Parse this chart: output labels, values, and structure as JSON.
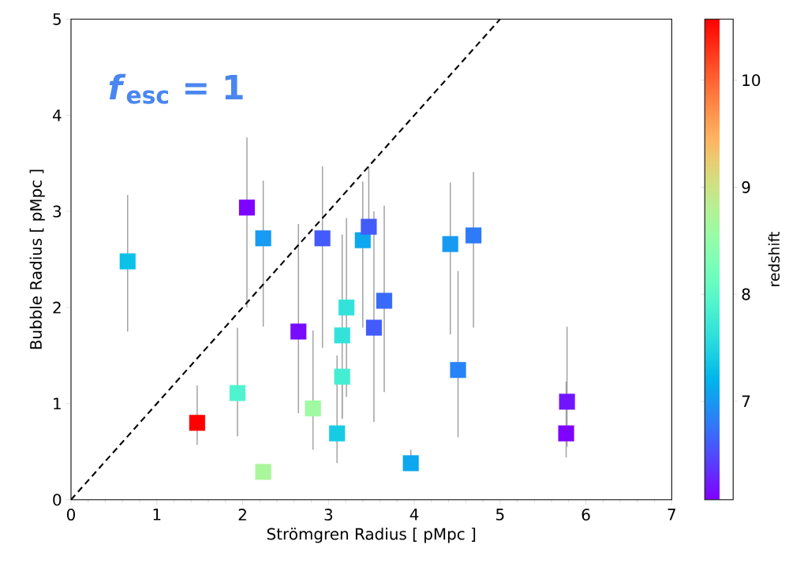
{
  "chart_data": {
    "type": "scatter",
    "xlabel": "Strömgren Radius [ pMpc ]",
    "ylabel": "Bubble Radius [ pMpc ]",
    "clabel": "redshift",
    "annotations": [
      "*f*$_{esc}$ = 1"
    ],
    "xlim": [
      0,
      7
    ],
    "xticks": [
      0,
      1,
      2,
      3,
      4,
      5,
      6,
      7
    ],
    "ylim": [
      0,
      5
    ],
    "yticks": [
      0,
      1,
      2,
      3,
      4,
      5
    ],
    "clim": [
      6.08,
      10.57
    ],
    "cticks": [
      7,
      8,
      9,
      10
    ],
    "series": [
      {
        "marker": "square",
        "colors": [
          "#0bc1e8",
          "#7d04ff",
          "#179bf2",
          "#ff0000",
          "#4ff4cf",
          "#aaf69a",
          "#780cff",
          "#9ffaa2",
          "#445bfb",
          "#16cbe4",
          "#44eed3",
          "#33e3da",
          "#33e3da",
          "#0ca7ef",
          "#445bfb",
          "#445bfb",
          "#396bf9",
          "#0ca7ef",
          "#179bf2",
          "#2e7bf7",
          "#2883f6",
          "#7215ff",
          "#7d04ff"
        ],
        "x": [
          0.66,
          2.05,
          2.24,
          1.47,
          1.94,
          2.24,
          2.65,
          2.82,
          2.93,
          3.1,
          3.16,
          3.16,
          3.21,
          3.4,
          3.47,
          3.53,
          3.65,
          3.96,
          4.42,
          4.69,
          4.51,
          5.78,
          5.77
        ],
        "values": [
          2.48,
          3.04,
          2.72,
          0.8,
          1.11,
          0.29,
          1.75,
          0.95,
          2.72,
          0.69,
          1.28,
          1.71,
          2.0,
          2.7,
          2.84,
          1.79,
          2.07,
          0.38,
          2.66,
          2.75,
          1.35,
          1.02,
          0.69
        ],
        "errors": [
          [
            1.75,
            3.17
          ],
          [
            2.0,
            3.77
          ],
          [
            1.8,
            3.32
          ],
          [
            0.57,
            1.19
          ],
          [
            0.66,
            1.79
          ],
          null,
          [
            0.9,
            2.87
          ],
          [
            0.52,
            1.76
          ],
          [
            1.58,
            3.47
          ],
          [
            0.38,
            1.5
          ],
          [
            0.85,
            1.28
          ],
          [
            0.84,
            2.76
          ],
          [
            1.07,
            2.93
          ],
          [
            1.79,
            3.31
          ],
          [
            2.84,
            3.47
          ],
          [
            0.81,
            3.0
          ],
          [
            1.12,
            3.06
          ],
          [
            0.3,
            0.52
          ],
          [
            1.72,
            3.3
          ],
          [
            1.79,
            3.41
          ],
          [
            0.65,
            2.38
          ],
          [
            0.55,
            1.8
          ],
          [
            0.44,
            1.23
          ]
        ],
        "cvalues": [
          7.3,
          6.1,
          7.0,
          10.57,
          7.9,
          8.7,
          6.15,
          8.6,
          6.6,
          7.4,
          7.8,
          7.65,
          7.65,
          7.1,
          6.6,
          6.6,
          6.7,
          7.1,
          7.0,
          6.8,
          6.85,
          6.2,
          6.1
        ]
      },
      {
        "type": "line",
        "x": [
          0,
          5
        ],
        "values": [
          0,
          5
        ],
        "color": "#000000",
        "line_style": "dashed"
      }
    ]
  }
}
